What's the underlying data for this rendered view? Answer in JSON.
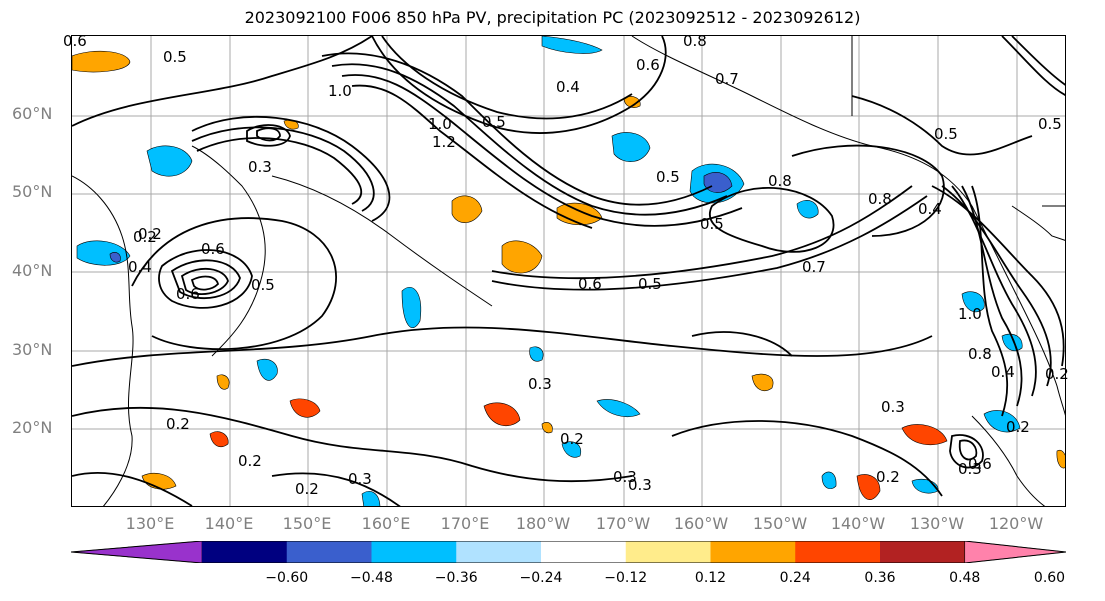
{
  "title": "2023092100 F006 850 hPa PV, precipitation PC (2023092512 - 2023092612)",
  "map": {
    "lat_labels": [
      "60°N",
      "50°N",
      "40°N",
      "30°N",
      "20°N"
    ],
    "lon_labels": [
      "130°E",
      "140°E",
      "150°E",
      "160°E",
      "170°E",
      "180°W",
      "170°W",
      "160°W",
      "150°W",
      "140°W",
      "130°W",
      "120°W"
    ],
    "contour_labels": [
      "0.6",
      "0.5",
      "0.8",
      "0.6",
      "0.7",
      "1.0",
      "1.0",
      "1.2",
      "0.5",
      "0.4",
      "0.3",
      "0.2",
      "0.5",
      "0.5",
      "0.8",
      "0.8",
      "0.4",
      "0.5",
      "0.5",
      "0.7",
      "0.6",
      "0.5",
      "0.6",
      "0.2",
      "0.6",
      "0.4",
      "0.5",
      "0.2",
      "0.3",
      "0.2",
      "0.2",
      "0.3",
      "0.2",
      "0.3",
      "0.3",
      "0.2",
      "0.3",
      "0.2",
      "0.3",
      "0.6",
      "1.0",
      "0.8",
      "0.4",
      "0.2"
    ]
  },
  "colorbar": {
    "colors": [
      "#9932cc",
      "#000080",
      "#3a5fcd",
      "#00bfff",
      "#b0e2ff",
      "#ffffff",
      "#ffec8b",
      "#ffa500",
      "#ff4500",
      "#b22222",
      "#ff82ab"
    ],
    "tick_labels": [
      "−0.60",
      "−0.48",
      "−0.36",
      "−0.24",
      "−0.12",
      "0.12",
      "0.24",
      "0.36",
      "0.48",
      "0.60"
    ]
  }
}
